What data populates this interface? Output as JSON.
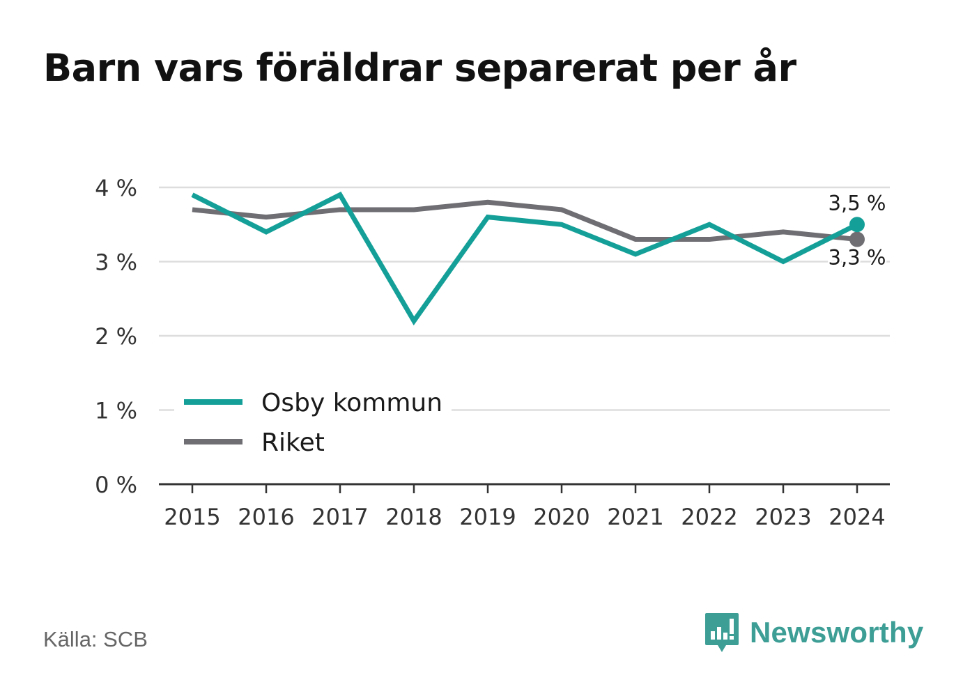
{
  "title": "Barn vars föräldrar separerat per år",
  "source": "Källa: SCB",
  "brand": {
    "name": "Newsworthy",
    "icon": "newsworthy-logo-icon",
    "color": "#3d9e96"
  },
  "chart_data": {
    "type": "line",
    "title": "Barn vars föräldrar separerat per år",
    "x": [
      "2015",
      "2016",
      "2017",
      "2018",
      "2019",
      "2020",
      "2021",
      "2022",
      "2023",
      "2024"
    ],
    "series": [
      {
        "name": "Osby kommun",
        "color": "#14a098",
        "values": [
          3.9,
          3.4,
          3.9,
          2.2,
          3.6,
          3.5,
          3.1,
          3.5,
          3.0,
          3.5
        ],
        "end_label": "3,5 %"
      },
      {
        "name": "Riket",
        "color": "#6e6e73",
        "values": [
          3.7,
          3.6,
          3.7,
          3.7,
          3.8,
          3.7,
          3.3,
          3.3,
          3.4,
          3.3
        ],
        "end_label": "3,3 %"
      }
    ],
    "y_ticks": [
      {
        "value": 0,
        "label": "0 %"
      },
      {
        "value": 1,
        "label": "1 %"
      },
      {
        "value": 2,
        "label": "2 %"
      },
      {
        "value": 3,
        "label": "3 %"
      },
      {
        "value": 4,
        "label": "4 %"
      }
    ],
    "ylim": [
      0,
      4
    ],
    "grid": true,
    "legend_position": "bottom-left"
  }
}
